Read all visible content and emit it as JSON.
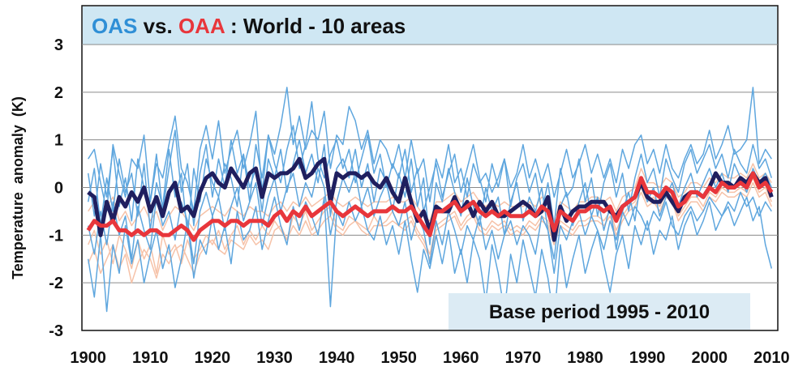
{
  "chart_data": {
    "type": "line",
    "title": {
      "part1": "OAS",
      "part2": " vs. ",
      "part3": "OAA",
      "part4": " : World - 10 areas"
    },
    "ylabel": "Temperature  anomaly  (K)",
    "annotation": "Base period 1995 - 2010",
    "xlim": [
      1899,
      2011
    ],
    "ylim": [
      -3,
      3
    ],
    "x_ticks": [
      "1900",
      "1910",
      "1920",
      "1930",
      "1940",
      "1950",
      "1960",
      "1970",
      "1980",
      "1990",
      "2000",
      "2010"
    ],
    "y_ticks": [
      "3",
      "2",
      "1",
      "0",
      "-1",
      "-2",
      "-3"
    ],
    "y_tick_values": [
      3,
      2,
      1,
      0,
      -1,
      -2,
      -3
    ],
    "x_tick_values": [
      1900,
      1910,
      1920,
      1930,
      1940,
      1950,
      1960,
      1970,
      1980,
      1990,
      2000,
      2010
    ],
    "grid": "horizontal",
    "colors": {
      "oas_mean": "#1f1f5f",
      "oaa_mean": "#e8363b",
      "oas_areas": "#5ea6de",
      "oaa_areas": "#f6c2a8",
      "title_oas": "#2f8fd6",
      "title_oaa": "#e8363b",
      "title_rest": "#111111",
      "title_bg": "#cfe7f3",
      "note_bg": "#dcebf4"
    },
    "series": [
      {
        "id": "oas_mean",
        "x_start": 1900,
        "values": [
          -0.1,
          -0.2,
          -1.0,
          -0.3,
          -0.7,
          -0.2,
          -0.4,
          -0.1,
          -0.3,
          0.0,
          -0.5,
          -0.2,
          -0.6,
          -0.1,
          0.1,
          -0.5,
          -0.4,
          -0.6,
          -0.1,
          0.2,
          0.3,
          0.1,
          0.0,
          0.4,
          0.2,
          0.0,
          0.3,
          0.4,
          -0.2,
          0.3,
          0.2,
          0.3,
          0.3,
          0.4,
          0.6,
          0.2,
          0.3,
          0.5,
          0.6,
          -0.3,
          0.3,
          0.2,
          0.3,
          0.3,
          0.2,
          0.3,
          0.1,
          0.0,
          0.2,
          -0.1,
          -0.3,
          0.2,
          -0.3,
          -0.7,
          -0.5,
          -0.9,
          -0.4,
          -0.5,
          -0.5,
          -0.2,
          -0.5,
          -0.3,
          -0.6,
          -0.3,
          -0.5,
          -0.3,
          -0.6,
          -0.6,
          -0.5,
          -0.4,
          -0.3,
          -0.4,
          -0.6,
          -0.5,
          -0.2,
          -1.1,
          -0.4,
          -0.7,
          -0.5,
          -0.4,
          -0.4,
          -0.3,
          -0.3,
          -0.3,
          -0.5,
          -0.6,
          -0.4,
          -0.3,
          -0.2,
          0.1,
          -0.2,
          -0.3,
          -0.3,
          -0.1,
          -0.3,
          -0.5,
          -0.2,
          -0.1,
          -0.1,
          -0.2,
          0.0,
          0.3,
          0.1,
          0.1,
          0.0,
          0.2,
          0.1,
          0.3,
          0.1,
          0.2,
          -0.2
        ],
        "width": 5
      },
      {
        "id": "oaa_mean",
        "x_start": 1900,
        "values": [
          -0.9,
          -0.7,
          -0.8,
          -0.8,
          -0.7,
          -0.9,
          -0.9,
          -1.0,
          -0.9,
          -1.0,
          -0.9,
          -0.9,
          -1.0,
          -1.0,
          -0.9,
          -0.8,
          -0.9,
          -1.1,
          -0.9,
          -0.8,
          -0.7,
          -0.7,
          -0.8,
          -0.7,
          -0.7,
          -0.8,
          -0.7,
          -0.7,
          -0.7,
          -0.8,
          -0.6,
          -0.5,
          -0.7,
          -0.5,
          -0.6,
          -0.4,
          -0.6,
          -0.5,
          -0.4,
          -0.3,
          -0.5,
          -0.6,
          -0.5,
          -0.4,
          -0.5,
          -0.6,
          -0.5,
          -0.5,
          -0.5,
          -0.4,
          -0.5,
          -0.5,
          -0.4,
          -0.6,
          -0.8,
          -1.0,
          -0.5,
          -0.5,
          -0.4,
          -0.3,
          -0.5,
          -0.4,
          -0.3,
          -0.5,
          -0.6,
          -0.5,
          -0.6,
          -0.5,
          -0.6,
          -0.6,
          -0.6,
          -0.5,
          -0.6,
          -0.4,
          -0.5,
          -0.9,
          -0.5,
          -0.6,
          -0.7,
          -0.5,
          -0.5,
          -0.4,
          -0.4,
          -0.5,
          -0.4,
          -0.7,
          -0.4,
          -0.3,
          -0.2,
          0.2,
          -0.1,
          -0.1,
          -0.2,
          0.0,
          -0.1,
          -0.4,
          -0.3,
          -0.1,
          -0.1,
          -0.2,
          0.0,
          -0.1,
          0.1,
          0.0,
          0.0,
          0.1,
          0.0,
          0.3,
          0.0,
          0.1,
          -0.1
        ],
        "width": 5
      },
      {
        "id": "oas_area_1",
        "x_start": 1900,
        "values": [
          0.6,
          0.8,
          0.1,
          -0.5,
          0.9,
          0.3,
          -0.2,
          0.6,
          0.4,
          1.1,
          -0.3,
          0.5,
          0.2,
          0.9,
          1.5,
          0.4,
          0.1,
          -0.5,
          0.8,
          1.3,
          0.6,
          1.4,
          0.3,
          0.8,
          1.2,
          0.4,
          0.9,
          1.6,
          -0.1,
          1.1,
          0.7,
          1.3,
          2.1,
          0.9,
          1.5,
          0.8,
          1.2,
          1.0,
          1.6,
          0.4,
          1.1,
          0.9,
          1.7,
          1.4,
          0.8,
          1.2,
          0.5,
          1.0,
          0.8,
          0.4,
          0.9,
          0.2,
          1.0,
          0.3,
          0.6,
          -0.3,
          0.6,
          0.2,
          0.9,
          0.1,
          0.4,
          -0.2,
          0.5,
          0.1,
          0.3,
          -0.1,
          0.2,
          0.6,
          0.0,
          0.3,
          0.9,
          0.2,
          0.6,
          0.1,
          0.5,
          -0.2,
          0.3,
          0.8,
          0.2,
          0.5,
          0.9,
          0.3,
          0.7,
          0.2,
          0.6,
          0.1,
          0.8,
          0.4,
          0.9,
          1.1,
          0.5,
          0.8,
          0.3,
          0.9,
          0.4,
          0.2,
          0.6,
          0.9,
          0.5,
          0.7,
          1.2,
          0.6,
          0.9,
          1.3,
          0.7,
          0.8,
          1.0,
          2.1,
          0.5,
          0.8,
          0.6
        ],
        "width": 1.5
      },
      {
        "id": "oas_area_2",
        "x_start": 1900,
        "values": [
          -1.5,
          -2.3,
          -1.0,
          -2.6,
          -1.2,
          -1.8,
          -0.8,
          -1.6,
          -1.1,
          -2.0,
          -1.4,
          -0.9,
          -1.7,
          -1.2,
          -2.1,
          -1.5,
          -0.7,
          -1.9,
          -1.1,
          -1.4,
          -0.6,
          -1.3,
          -0.8,
          -1.6,
          -0.5,
          -1.1,
          -0.9,
          -0.4,
          -1.3,
          -0.7,
          -0.2,
          -0.8,
          -1.2,
          -0.4,
          -0.9,
          -0.3,
          -0.6,
          -1.0,
          -0.2,
          -2.5,
          -0.5,
          -0.8,
          -0.3,
          -0.7,
          -0.4,
          -0.9,
          -1.1,
          -0.6,
          -1.2,
          -0.8,
          -1.4,
          -0.7,
          -1.5,
          -2.2,
          -1.3,
          -1.7,
          -1.0,
          -1.6,
          -0.9,
          -1.8,
          -1.3,
          -2.0,
          -1.1,
          -1.5,
          -2.4,
          -1.2,
          -1.8,
          -2.6,
          -1.4,
          -2.0,
          -1.1,
          -1.7,
          -2.3,
          -1.3,
          -1.9,
          -2.8,
          -1.2,
          -2.1,
          -1.5,
          -1.0,
          -1.8,
          -1.3,
          -0.9,
          -1.6,
          -2.2,
          -1.4,
          -1.0,
          -1.7,
          -0.8,
          -1.2,
          -0.7,
          -1.4,
          -0.9,
          -1.1,
          -0.6,
          -1.3,
          -0.8,
          -0.5,
          -1.0,
          -0.7,
          -0.3,
          -0.9,
          -0.6,
          -0.4,
          -0.8,
          -0.5,
          -0.2,
          -0.7,
          -0.4,
          -1.2,
          -1.7
        ],
        "width": 1.5
      },
      {
        "id": "oas_area_3",
        "x_start": 1900,
        "values": [
          -0.3,
          0.4,
          -0.8,
          0.2,
          -0.5,
          0.6,
          -0.1,
          0.3,
          -0.6,
          0.5,
          -0.9,
          0.1,
          -0.4,
          0.8,
          -0.2,
          0.3,
          -1.0,
          0.4,
          -0.3,
          0.6,
          0.1,
          -0.2,
          0.5,
          0.2,
          -0.4,
          0.7,
          0.0,
          0.4,
          -0.5,
          0.6,
          0.2,
          0.8,
          -0.1,
          0.5,
          1.0,
          0.3,
          0.7,
          0.1,
          0.9,
          -0.6,
          0.4,
          0.6,
          0.2,
          0.8,
          0.0,
          0.5,
          -0.3,
          0.4,
          0.1,
          -0.5,
          0.3,
          -0.2,
          0.6,
          -0.4,
          0.2,
          -1.2,
          0.1,
          -0.3,
          0.4,
          -0.1,
          -0.6,
          0.2,
          -0.4,
          -0.8,
          0.0,
          -0.5,
          -0.2,
          -1.0,
          -0.3,
          0.1,
          -0.7,
          -0.2,
          -0.5,
          0.0,
          -0.9,
          -1.5,
          -0.4,
          -0.1,
          -0.8,
          -0.3,
          0.1,
          -0.6,
          -0.2,
          -0.9,
          -0.4,
          -1.3,
          -0.5,
          -0.1,
          -0.7,
          0.2,
          -0.3,
          0.0,
          -0.6,
          -0.2,
          0.1,
          -0.4,
          0.0,
          0.3,
          -0.2,
          0.1,
          0.4,
          0.0,
          0.3,
          -0.1,
          0.5,
          0.2,
          -0.1,
          0.4,
          0.1,
          0.3,
          0.0
        ],
        "width": 1.5
      },
      {
        "id": "oas_area_4",
        "x_start": 1900,
        "values": [
          0.3,
          -0.6,
          0.5,
          -0.2,
          0.8,
          -0.4,
          0.2,
          -0.7,
          0.6,
          0.0,
          -0.3,
          0.7,
          -0.5,
          0.4,
          1.2,
          -0.1,
          0.5,
          -0.8,
          0.3,
          0.9,
          -0.2,
          0.6,
          0.0,
          1.0,
          0.3,
          0.7,
          -0.3,
          0.9,
          0.2,
          1.1,
          0.5,
          0.1,
          0.8,
          1.3,
          0.4,
          0.9,
          1.8,
          0.6,
          0.2,
          0.7,
          1.0,
          0.4,
          0.8,
          0.1,
          0.6,
          1.1,
          0.3,
          0.7,
          0.0,
          0.5,
          0.2,
          0.8,
          -0.1,
          0.4,
          -0.5,
          0.0,
          0.5,
          -0.2,
          0.3,
          0.7,
          -0.1,
          0.4,
          0.9,
          0.2,
          -0.3,
          0.5,
          0.0,
          0.6,
          -0.4,
          0.2,
          0.5,
          -0.1,
          0.3,
          -0.5,
          0.1,
          -0.8,
          0.4,
          -0.2,
          0.0,
          0.6,
          -0.3,
          0.2,
          -0.6,
          0.1,
          0.5,
          -0.2,
          0.3,
          -0.5,
          0.2,
          0.7,
          0.1,
          0.4,
          -0.2,
          0.6,
          0.2,
          -0.1,
          0.5,
          0.8,
          0.3,
          0.6,
          0.9,
          0.4,
          0.7,
          0.2,
          0.8,
          0.5,
          0.3,
          0.9,
          0.4,
          0.6,
          0.2
        ],
        "width": 1.5
      },
      {
        "id": "oas_area_5",
        "x_start": 1900,
        "values": [
          -0.8,
          -1.4,
          -0.5,
          -1.2,
          -0.3,
          -1.0,
          -0.6,
          -1.5,
          -0.4,
          -0.9,
          -1.3,
          -0.2,
          -0.8,
          -0.5,
          -1.1,
          -0.3,
          -0.7,
          -1.6,
          -0.5,
          -0.1,
          -0.6,
          -0.2,
          -0.9,
          -0.4,
          0.0,
          -0.7,
          -0.3,
          0.1,
          -0.8,
          -0.2,
          0.2,
          -0.5,
          0.0,
          0.3,
          -0.4,
          0.1,
          -0.2,
          0.4,
          0.0,
          -1.0,
          -0.3,
          0.2,
          -0.1,
          0.3,
          -0.4,
          0.0,
          -0.6,
          -0.2,
          0.1,
          -0.5,
          -0.8,
          -0.3,
          -1.1,
          -0.6,
          -0.9,
          -1.6,
          -0.7,
          -1.2,
          -0.5,
          -0.9,
          -1.4,
          -0.8,
          -1.1,
          -0.6,
          -1.3,
          -0.9,
          -1.5,
          -1.0,
          -0.7,
          -1.2,
          -0.8,
          -1.0,
          -1.4,
          -0.6,
          -0.9,
          -1.8,
          -0.8,
          -1.1,
          -0.7,
          -0.5,
          -1.0,
          -0.6,
          -0.9,
          -1.3,
          -0.7,
          -1.1,
          -0.5,
          -0.8,
          -0.4,
          -0.6,
          -0.9,
          -0.5,
          -0.7,
          -0.3,
          -0.8,
          -1.0,
          -0.6,
          -0.4,
          -0.7,
          -0.5,
          -0.2,
          -0.4,
          -0.6,
          -0.3,
          -0.5,
          -0.1,
          -0.4,
          -0.2,
          -0.6,
          -0.3,
          -0.5
        ],
        "width": 1.5
      },
      {
        "id": "oaa_area_1",
        "x_start": 1900,
        "values": [
          -1.2,
          -0.9,
          -1.4,
          -1.1,
          -1.6,
          -1.0,
          -1.3,
          -1.7,
          -1.1,
          -1.5,
          -1.2,
          -1.8,
          -1.0,
          -1.4,
          -1.2,
          -1.6,
          -1.1,
          -1.5,
          -1.3,
          -1.0,
          -1.2,
          -0.9,
          -1.3,
          -1.0,
          -0.8,
          -1.2,
          -0.9,
          -1.1,
          -0.8,
          -1.0,
          -0.7,
          -0.9,
          -1.1,
          -0.6,
          -0.8,
          -0.5,
          -0.9,
          -0.7,
          -0.5,
          -0.4,
          -0.8,
          -0.9,
          -0.6,
          -0.7,
          -0.8,
          -0.9,
          -0.6,
          -0.8,
          -0.7,
          -0.5,
          -0.8,
          -0.7,
          -0.6,
          -0.9,
          -1.1,
          -1.4,
          -0.8,
          -0.7,
          -0.6,
          -0.5,
          -0.8,
          -0.6,
          -0.5,
          -0.8,
          -0.9,
          -0.7,
          -0.8,
          -0.7,
          -0.9,
          -0.8,
          -0.9,
          -0.7,
          -0.8,
          -0.6,
          -0.7,
          -1.1,
          -0.7,
          -0.8,
          -0.9,
          -0.7,
          -0.7,
          -0.6,
          -0.6,
          -0.7,
          -0.5,
          -0.9,
          -0.6,
          -0.4,
          -0.3,
          0.0,
          -0.3,
          -0.2,
          -0.4,
          -0.1,
          -0.2,
          -0.6,
          -0.4,
          -0.2,
          -0.2,
          -0.4,
          -0.1,
          -0.2,
          0.0,
          -0.1,
          -0.1,
          0.0,
          -0.1,
          0.2,
          -0.1,
          0.0,
          -0.3
        ],
        "width": 1.5
      },
      {
        "id": "oaa_area_2",
        "x_start": 1900,
        "values": [
          -0.5,
          -0.3,
          -0.6,
          -0.4,
          -0.2,
          -0.7,
          -0.5,
          -0.8,
          -0.6,
          -0.4,
          -0.7,
          -0.5,
          -0.9,
          -0.6,
          -0.4,
          -0.5,
          -0.7,
          -0.9,
          -0.6,
          -0.5,
          -0.4,
          -0.5,
          -0.6,
          -0.4,
          -0.5,
          -0.6,
          -0.4,
          -0.5,
          -0.5,
          -0.6,
          -0.4,
          -0.3,
          -0.5,
          -0.3,
          -0.4,
          -0.2,
          -0.4,
          -0.3,
          -0.2,
          -0.1,
          -0.3,
          -0.4,
          -0.3,
          -0.2,
          -0.3,
          -0.4,
          -0.3,
          -0.3,
          -0.3,
          -0.2,
          -0.3,
          -0.3,
          -0.2,
          -0.4,
          -0.6,
          -0.7,
          -0.3,
          -0.3,
          -0.2,
          -0.1,
          -0.3,
          -0.2,
          -0.1,
          -0.3,
          -0.4,
          -0.3,
          -0.4,
          -0.3,
          -0.4,
          -0.4,
          -0.4,
          -0.3,
          -0.4,
          -0.2,
          -0.3,
          -0.7,
          -0.3,
          -0.4,
          -0.5,
          -0.3,
          -0.3,
          -0.2,
          -0.2,
          -0.3,
          -0.2,
          -0.5,
          -0.2,
          -0.1,
          0.0,
          0.4,
          0.1,
          0.1,
          0.0,
          0.2,
          0.1,
          -0.2,
          -0.1,
          0.1,
          0.1,
          0.0,
          0.2,
          0.1,
          0.3,
          0.2,
          0.2,
          0.3,
          0.2,
          0.5,
          0.2,
          0.3,
          0.1
        ],
        "width": 1.5
      },
      {
        "id": "oaa_area_3",
        "x_start": 1900,
        "values": [
          -1.6,
          -1.3,
          -1.8,
          -1.5,
          -1.2,
          -1.7,
          -1.4,
          -2.0,
          -1.6,
          -1.3,
          -1.5,
          -1.9,
          -1.4,
          -1.6,
          -1.3,
          -1.2,
          -1.5,
          -1.8,
          -1.4,
          -1.2,
          -1.1,
          -1.3,
          -1.4,
          -1.1,
          -1.2,
          -1.3,
          -1.0,
          -1.2,
          -1.1,
          -1.3,
          -0.9,
          -0.8,
          -1.1,
          -0.8,
          -1.0,
          -0.7,
          -1.0,
          -0.9,
          -0.7,
          -0.6,
          -0.9,
          -1.0,
          -0.8,
          -0.7,
          -0.9,
          -1.0,
          -0.8,
          -0.8,
          -0.8,
          -0.7,
          -0.8,
          -0.9,
          -0.7,
          -1.0,
          -1.2,
          -1.5,
          -0.9,
          -0.8,
          -0.7,
          -0.6,
          -0.9,
          -0.7,
          -0.6,
          -0.9,
          -1.0,
          -0.8,
          -0.9,
          -0.8,
          -1.0,
          -0.9,
          -1.0,
          -0.8,
          -0.9,
          -0.7,
          -0.8,
          -1.2,
          -0.8,
          -0.9,
          -1.0,
          -0.8,
          -0.8,
          -0.7,
          -0.7,
          -0.8,
          -0.6,
          -1.0,
          -0.7,
          -0.5,
          -0.4,
          -0.1,
          -0.4,
          -0.3,
          -0.5,
          -0.2,
          -0.3,
          -0.7,
          -0.5,
          -0.3,
          -0.3,
          -0.5,
          -0.2,
          -0.3,
          -0.1,
          -0.2,
          -0.2,
          -0.1,
          -0.2,
          0.1,
          -0.2,
          -0.1,
          -0.4
        ],
        "width": 1.5
      }
    ]
  }
}
